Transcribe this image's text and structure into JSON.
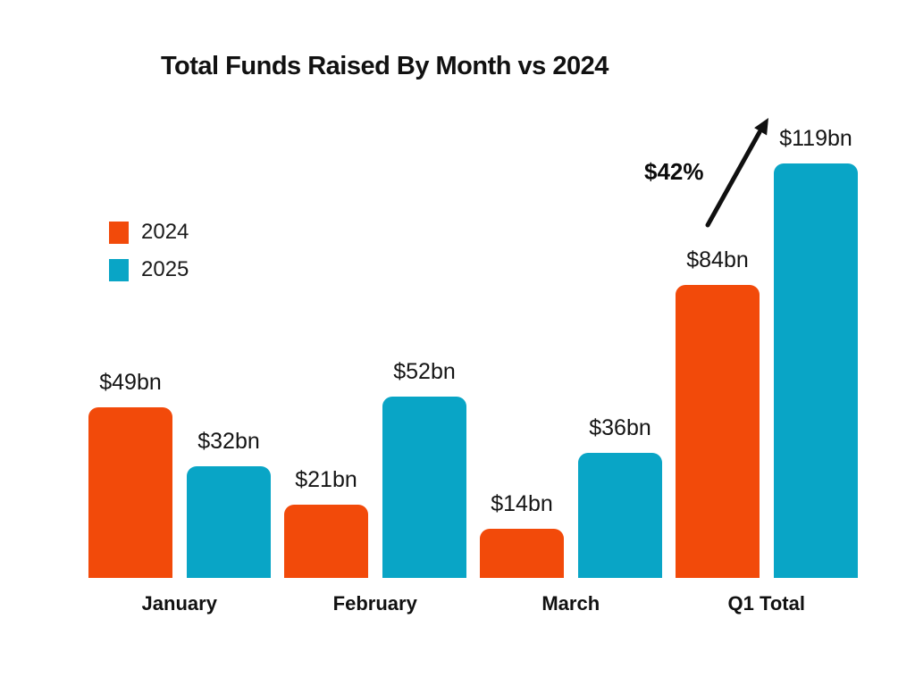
{
  "page": {
    "background": "#ffffff",
    "text_color": "#111111"
  },
  "header": {
    "title": "Total Funds Raised By Month vs 2024"
  },
  "legend": {
    "items": [
      {
        "label": "2024",
        "color": "#F24A0A"
      },
      {
        "label": "2025",
        "color": "#09A5C6"
      }
    ]
  },
  "annotation": {
    "text": "$42%",
    "icon": "arrow-up-right-icon",
    "meaning": "growth from 2024 Q1 total to 2025 Q1 total"
  },
  "chart_data": {
    "type": "bar",
    "title": "Total Funds Raised By Month vs 2024",
    "categories": [
      "January",
      "February",
      "March",
      "Q1 Total"
    ],
    "series": [
      {
        "name": "2024",
        "color": "#F24A0A",
        "values": [
          49,
          21,
          14,
          84
        ],
        "labels": [
          "$49bn",
          "$21bn",
          "$14bn",
          "$84bn"
        ]
      },
      {
        "name": "2025",
        "color": "#09A5C6",
        "values": [
          32,
          52,
          36,
          119
        ],
        "labels": [
          "$32bn",
          "$52bn",
          "$36bn",
          "$119bn"
        ]
      }
    ],
    "xlabel": "",
    "ylabel": "",
    "ylim": [
      0,
      125
    ],
    "grid": false,
    "axes_visible": false,
    "legend_position": "upper-left",
    "annotations": [
      {
        "text": "$42%",
        "type": "growth-arrow",
        "category": "Q1 Total",
        "from_series": "2024",
        "to_series": "2025"
      }
    ]
  }
}
